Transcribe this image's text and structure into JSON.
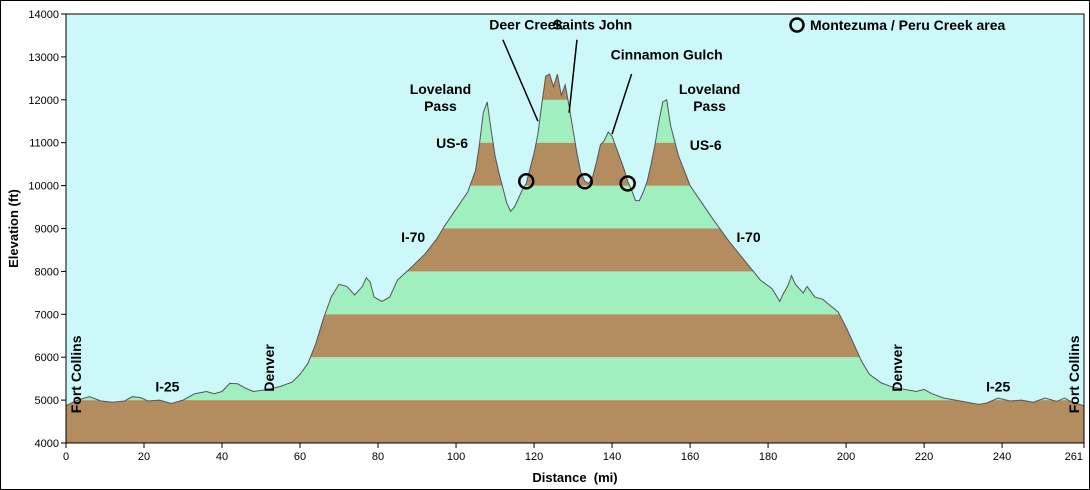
{
  "chart_data": {
    "type": "area",
    "xlabel": "Distance  (mi)",
    "ylabel": "Elevation (ft)",
    "xlim": [
      0,
      261
    ],
    "ylim": [
      4000,
      14000
    ],
    "x_ticks": [
      0,
      20,
      40,
      60,
      80,
      100,
      120,
      140,
      160,
      180,
      200,
      220,
      240,
      261
    ],
    "y_ticks": [
      4000,
      5000,
      6000,
      7000,
      8000,
      9000,
      10000,
      11000,
      12000,
      13000,
      14000
    ],
    "band_colors": [
      "#b38c60",
      "#a0efbe"
    ],
    "plot_background": "#ccf8fa",
    "grid": false,
    "legend": {
      "label": "Montezuma / Peru Creek area",
      "marker": "circle",
      "position": "top-right"
    },
    "profile": [
      [
        0,
        4870
      ],
      [
        3,
        5000
      ],
      [
        6,
        5080
      ],
      [
        9,
        4980
      ],
      [
        12,
        4950
      ],
      [
        15,
        4980
      ],
      [
        17,
        5080
      ],
      [
        19,
        5060
      ],
      [
        21,
        4980
      ],
      [
        24,
        5000
      ],
      [
        27,
        4920
      ],
      [
        30,
        5000
      ],
      [
        33,
        5150
      ],
      [
        36,
        5200
      ],
      [
        38,
        5150
      ],
      [
        40,
        5200
      ],
      [
        42,
        5390
      ],
      [
        44,
        5380
      ],
      [
        46,
        5280
      ],
      [
        48,
        5200
      ],
      [
        52,
        5250
      ],
      [
        55,
        5320
      ],
      [
        58,
        5420
      ],
      [
        60,
        5600
      ],
      [
        62,
        5850
      ],
      [
        64,
        6300
      ],
      [
        66,
        6900
      ],
      [
        68,
        7400
      ],
      [
        70,
        7700
      ],
      [
        72,
        7650
      ],
      [
        74,
        7450
      ],
      [
        76,
        7650
      ],
      [
        77,
        7850
      ],
      [
        78,
        7750
      ],
      [
        79,
        7400
      ],
      [
        81,
        7300
      ],
      [
        83,
        7400
      ],
      [
        85,
        7800
      ],
      [
        88,
        8050
      ],
      [
        92,
        8400
      ],
      [
        95,
        8750
      ],
      [
        97,
        9050
      ],
      [
        100,
        9450
      ],
      [
        103,
        9850
      ],
      [
        105,
        10350
      ],
      [
        106,
        10950
      ],
      [
        107,
        11700
      ],
      [
        108,
        11950
      ],
      [
        109,
        11300
      ],
      [
        110,
        10700
      ],
      [
        111,
        10300
      ],
      [
        112,
        9950
      ],
      [
        113,
        9600
      ],
      [
        114,
        9400
      ],
      [
        115,
        9500
      ],
      [
        116,
        9700
      ],
      [
        117,
        9900
      ],
      [
        118,
        10050
      ],
      [
        119,
        10400
      ],
      [
        120,
        10750
      ],
      [
        121,
        11200
      ],
      [
        122,
        11900
      ],
      [
        123,
        12550
      ],
      [
        124,
        12600
      ],
      [
        125,
        12300
      ],
      [
        126,
        12600
      ],
      [
        127,
        12100
      ],
      [
        128,
        12350
      ],
      [
        129,
        11850
      ],
      [
        130,
        11300
      ],
      [
        131,
        10750
      ],
      [
        132,
        10300
      ],
      [
        133,
        10100
      ],
      [
        134,
        10050
      ],
      [
        135,
        10200
      ],
      [
        136,
        10550
      ],
      [
        137,
        10950
      ],
      [
        138,
        11050
      ],
      [
        139,
        11250
      ],
      [
        140,
        11150
      ],
      [
        141,
        10900
      ],
      [
        142,
        10650
      ],
      [
        143,
        10400
      ],
      [
        144,
        10100
      ],
      [
        145,
        9900
      ],
      [
        146,
        9650
      ],
      [
        147,
        9650
      ],
      [
        148,
        9850
      ],
      [
        149,
        10100
      ],
      [
        150,
        10500
      ],
      [
        151,
        10950
      ],
      [
        152,
        11500
      ],
      [
        153,
        11950
      ],
      [
        154,
        12000
      ],
      [
        155,
        11400
      ],
      [
        157,
        10700
      ],
      [
        160,
        10000
      ],
      [
        163,
        9600
      ],
      [
        166,
        9200
      ],
      [
        170,
        8700
      ],
      [
        174,
        8250
      ],
      [
        178,
        7800
      ],
      [
        181,
        7600
      ],
      [
        183,
        7300
      ],
      [
        184,
        7500
      ],
      [
        185,
        7650
      ],
      [
        186,
        7900
      ],
      [
        187,
        7700
      ],
      [
        188,
        7600
      ],
      [
        189,
        7500
      ],
      [
        190,
        7650
      ],
      [
        192,
        7400
      ],
      [
        194,
        7350
      ],
      [
        196,
        7200
      ],
      [
        198,
        7050
      ],
      [
        200,
        6700
      ],
      [
        202,
        6300
      ],
      [
        204,
        5900
      ],
      [
        206,
        5600
      ],
      [
        209,
        5400
      ],
      [
        212,
        5300
      ],
      [
        215,
        5250
      ],
      [
        218,
        5200
      ],
      [
        220,
        5250
      ],
      [
        222,
        5150
      ],
      [
        225,
        5050
      ],
      [
        228,
        5000
      ],
      [
        231,
        4950
      ],
      [
        234,
        4900
      ],
      [
        236,
        4930
      ],
      [
        239,
        5050
      ],
      [
        242,
        4980
      ],
      [
        245,
        5000
      ],
      [
        248,
        4950
      ],
      [
        251,
        5050
      ],
      [
        254,
        4970
      ],
      [
        256,
        5050
      ],
      [
        258,
        4950
      ],
      [
        261,
        4870
      ]
    ],
    "markers": [
      [
        118,
        10100
      ],
      [
        133,
        10100
      ],
      [
        144,
        10050
      ]
    ],
    "annotations": [
      {
        "key": "fc_left",
        "lines": [
          "Fort Collins"
        ],
        "x": 2.5,
        "y": 5600,
        "rotate": -90,
        "anchor": "middle"
      },
      {
        "key": "i25_left",
        "lines": [
          "I-25"
        ],
        "x": 26,
        "y": 5200,
        "anchor": "middle"
      },
      {
        "key": "denver_left",
        "lines": [
          "Denver"
        ],
        "x": 52,
        "y": 5750,
        "rotate": -90,
        "anchor": "middle"
      },
      {
        "key": "i70_left",
        "lines": [
          "I-70"
        ],
        "x": 89,
        "y": 8680,
        "anchor": "middle"
      },
      {
        "key": "us6_left",
        "lines": [
          "US-6"
        ],
        "x": 99,
        "y": 10880,
        "anchor": "middle"
      },
      {
        "key": "lov_left",
        "lines": [
          "Loveland",
          "Pass"
        ],
        "x": 96,
        "y": 12140,
        "anchor": "middle"
      },
      {
        "key": "deer",
        "lines": [
          "Deer Creek"
        ],
        "x": 118,
        "y": 13640,
        "anchor": "middle"
      },
      {
        "key": "saints",
        "lines": [
          "Saints John"
        ],
        "x": 135,
        "y": 13640,
        "anchor": "middle"
      },
      {
        "key": "cinnamon",
        "lines": [
          "Cinnamon Gulch"
        ],
        "x": 154,
        "y": 12940,
        "anchor": "middle"
      },
      {
        "key": "lov_right",
        "lines": [
          "Loveland",
          "Pass"
        ],
        "x": 165,
        "y": 12140,
        "anchor": "middle"
      },
      {
        "key": "us6_right",
        "lines": [
          "US-6"
        ],
        "x": 164,
        "y": 10830,
        "anchor": "middle"
      },
      {
        "key": "i70_right",
        "lines": [
          "I-70"
        ],
        "x": 175,
        "y": 8680,
        "anchor": "middle"
      },
      {
        "key": "denver_right",
        "lines": [
          "Denver"
        ],
        "x": 213,
        "y": 5750,
        "rotate": -90,
        "anchor": "middle"
      },
      {
        "key": "i25_right",
        "lines": [
          "I-25"
        ],
        "x": 239,
        "y": 5200,
        "anchor": "middle"
      },
      {
        "key": "fc_right",
        "lines": [
          "Fort Collins"
        ],
        "x": 258.5,
        "y": 5600,
        "rotate": -90,
        "anchor": "middle"
      }
    ],
    "leader_lines": [
      [
        [
          112,
          13400
        ],
        [
          121,
          11500
        ]
      ],
      [
        [
          131,
          13400
        ],
        [
          129,
          11700
        ]
      ],
      [
        [
          145,
          12600
        ],
        [
          140,
          11200
        ]
      ]
    ]
  }
}
